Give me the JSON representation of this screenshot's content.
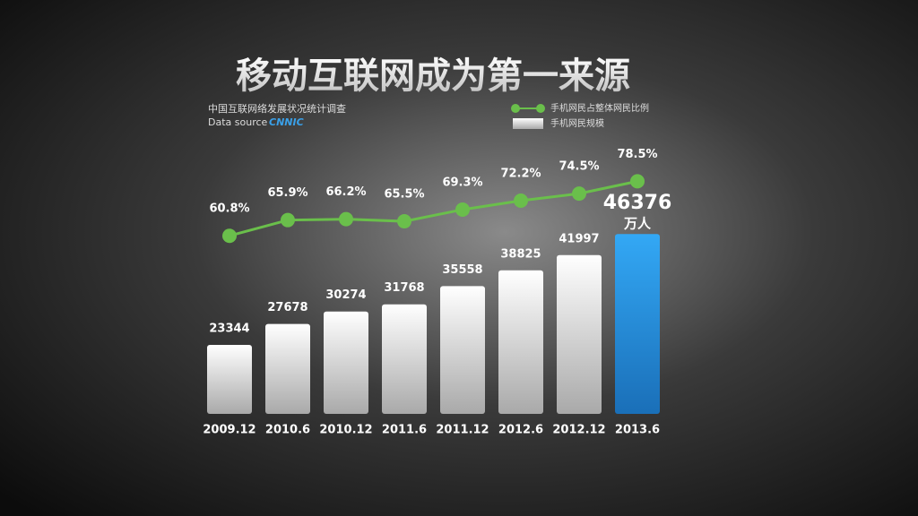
{
  "chart_data": {
    "type": "bar-line",
    "title": "移动互联网成为第一来源",
    "subtitle": "中国互联网络发展状况统计调查",
    "source_label": "Data source",
    "source_logo": "CNNIC",
    "categories": [
      "2009.12",
      "2010.6",
      "2010.12",
      "2011.6",
      "2011.12",
      "2012.6",
      "2012.12",
      "2013.6"
    ],
    "series": [
      {
        "name": "手机网民规模",
        "type": "bar",
        "color": "#e6e6e6",
        "highlight_color": "#2a9ce8",
        "values": [
          23344,
          27678,
          30274,
          31768,
          35558,
          38825,
          41997,
          46376
        ]
      },
      {
        "name": "手机网民占整体网民比例",
        "type": "line",
        "axis": "y2",
        "color": "#6abf4b",
        "values": [
          60.8,
          65.9,
          66.2,
          65.5,
          69.3,
          72.2,
          74.5,
          78.5
        ],
        "value_labels": [
          "60.8%",
          "65.9%",
          "66.2%",
          "65.5%",
          "69.3%",
          "72.2%",
          "74.5%",
          "78.5%"
        ]
      }
    ],
    "last_value_unit": "万人",
    "ylim": [
      9000,
      61500
    ],
    "y2lim": [
      3,
      85
    ]
  }
}
